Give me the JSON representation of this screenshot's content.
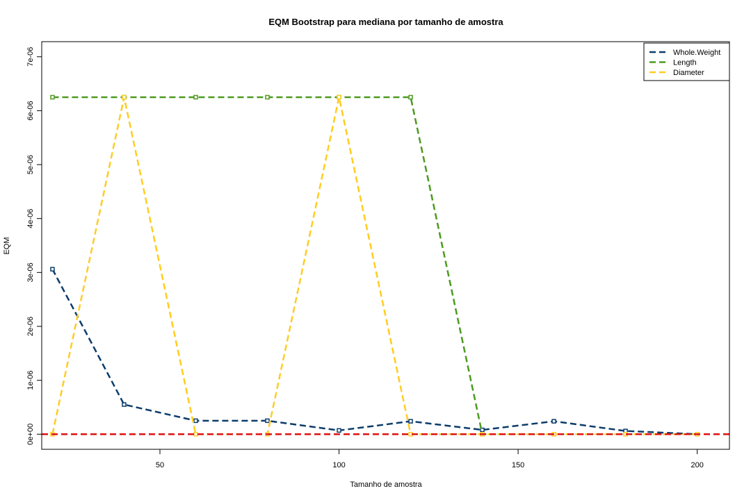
{
  "chart_data": {
    "type": "line",
    "title": "EQM Bootstrap para mediana por tamanho de amostra",
    "xlabel": "Tamanho de amostra",
    "ylabel": "EQM",
    "xlim": [
      17,
      209
    ],
    "ylim": [
      -2.8e-07,
      7.28e-06
    ],
    "x_ticks": [
      50,
      100,
      150,
      200
    ],
    "x_tick_labels": [
      "50",
      "100",
      "150",
      "200"
    ],
    "y_ticks": [
      0,
      1e-06,
      2e-06,
      3e-06,
      4e-06,
      5e-06,
      6e-06,
      7e-06
    ],
    "y_tick_labels": [
      "0e+00",
      "1e-06",
      "2e-06",
      "3e-06",
      "4e-06",
      "5e-06",
      "6e-06",
      "7e-06"
    ],
    "grid": false,
    "legend_position": "top-right",
    "x": [
      20,
      40,
      60,
      80,
      100,
      120,
      140,
      160,
      180,
      200
    ],
    "series": [
      {
        "name": "Whole.Weight",
        "color": "#0b3c6b",
        "values": [
          3.06e-06,
          5.5e-07,
          2.5e-07,
          2.5e-07,
          7e-08,
          2.4e-07,
          8e-08,
          2.4e-07,
          6e-08,
          0
        ]
      },
      {
        "name": "Length",
        "color": "#4c9a1f",
        "values": [
          6.25e-06,
          6.25e-06,
          6.25e-06,
          6.25e-06,
          6.25e-06,
          6.25e-06,
          0,
          0,
          0,
          0
        ]
      },
      {
        "name": "Diameter",
        "color": "#ffcc22",
        "values": [
          0,
          6.25e-06,
          0,
          0,
          6.25e-06,
          0,
          0,
          0,
          0,
          0
        ]
      }
    ],
    "reference_line": {
      "y": 0,
      "color": "#dd1111"
    }
  }
}
